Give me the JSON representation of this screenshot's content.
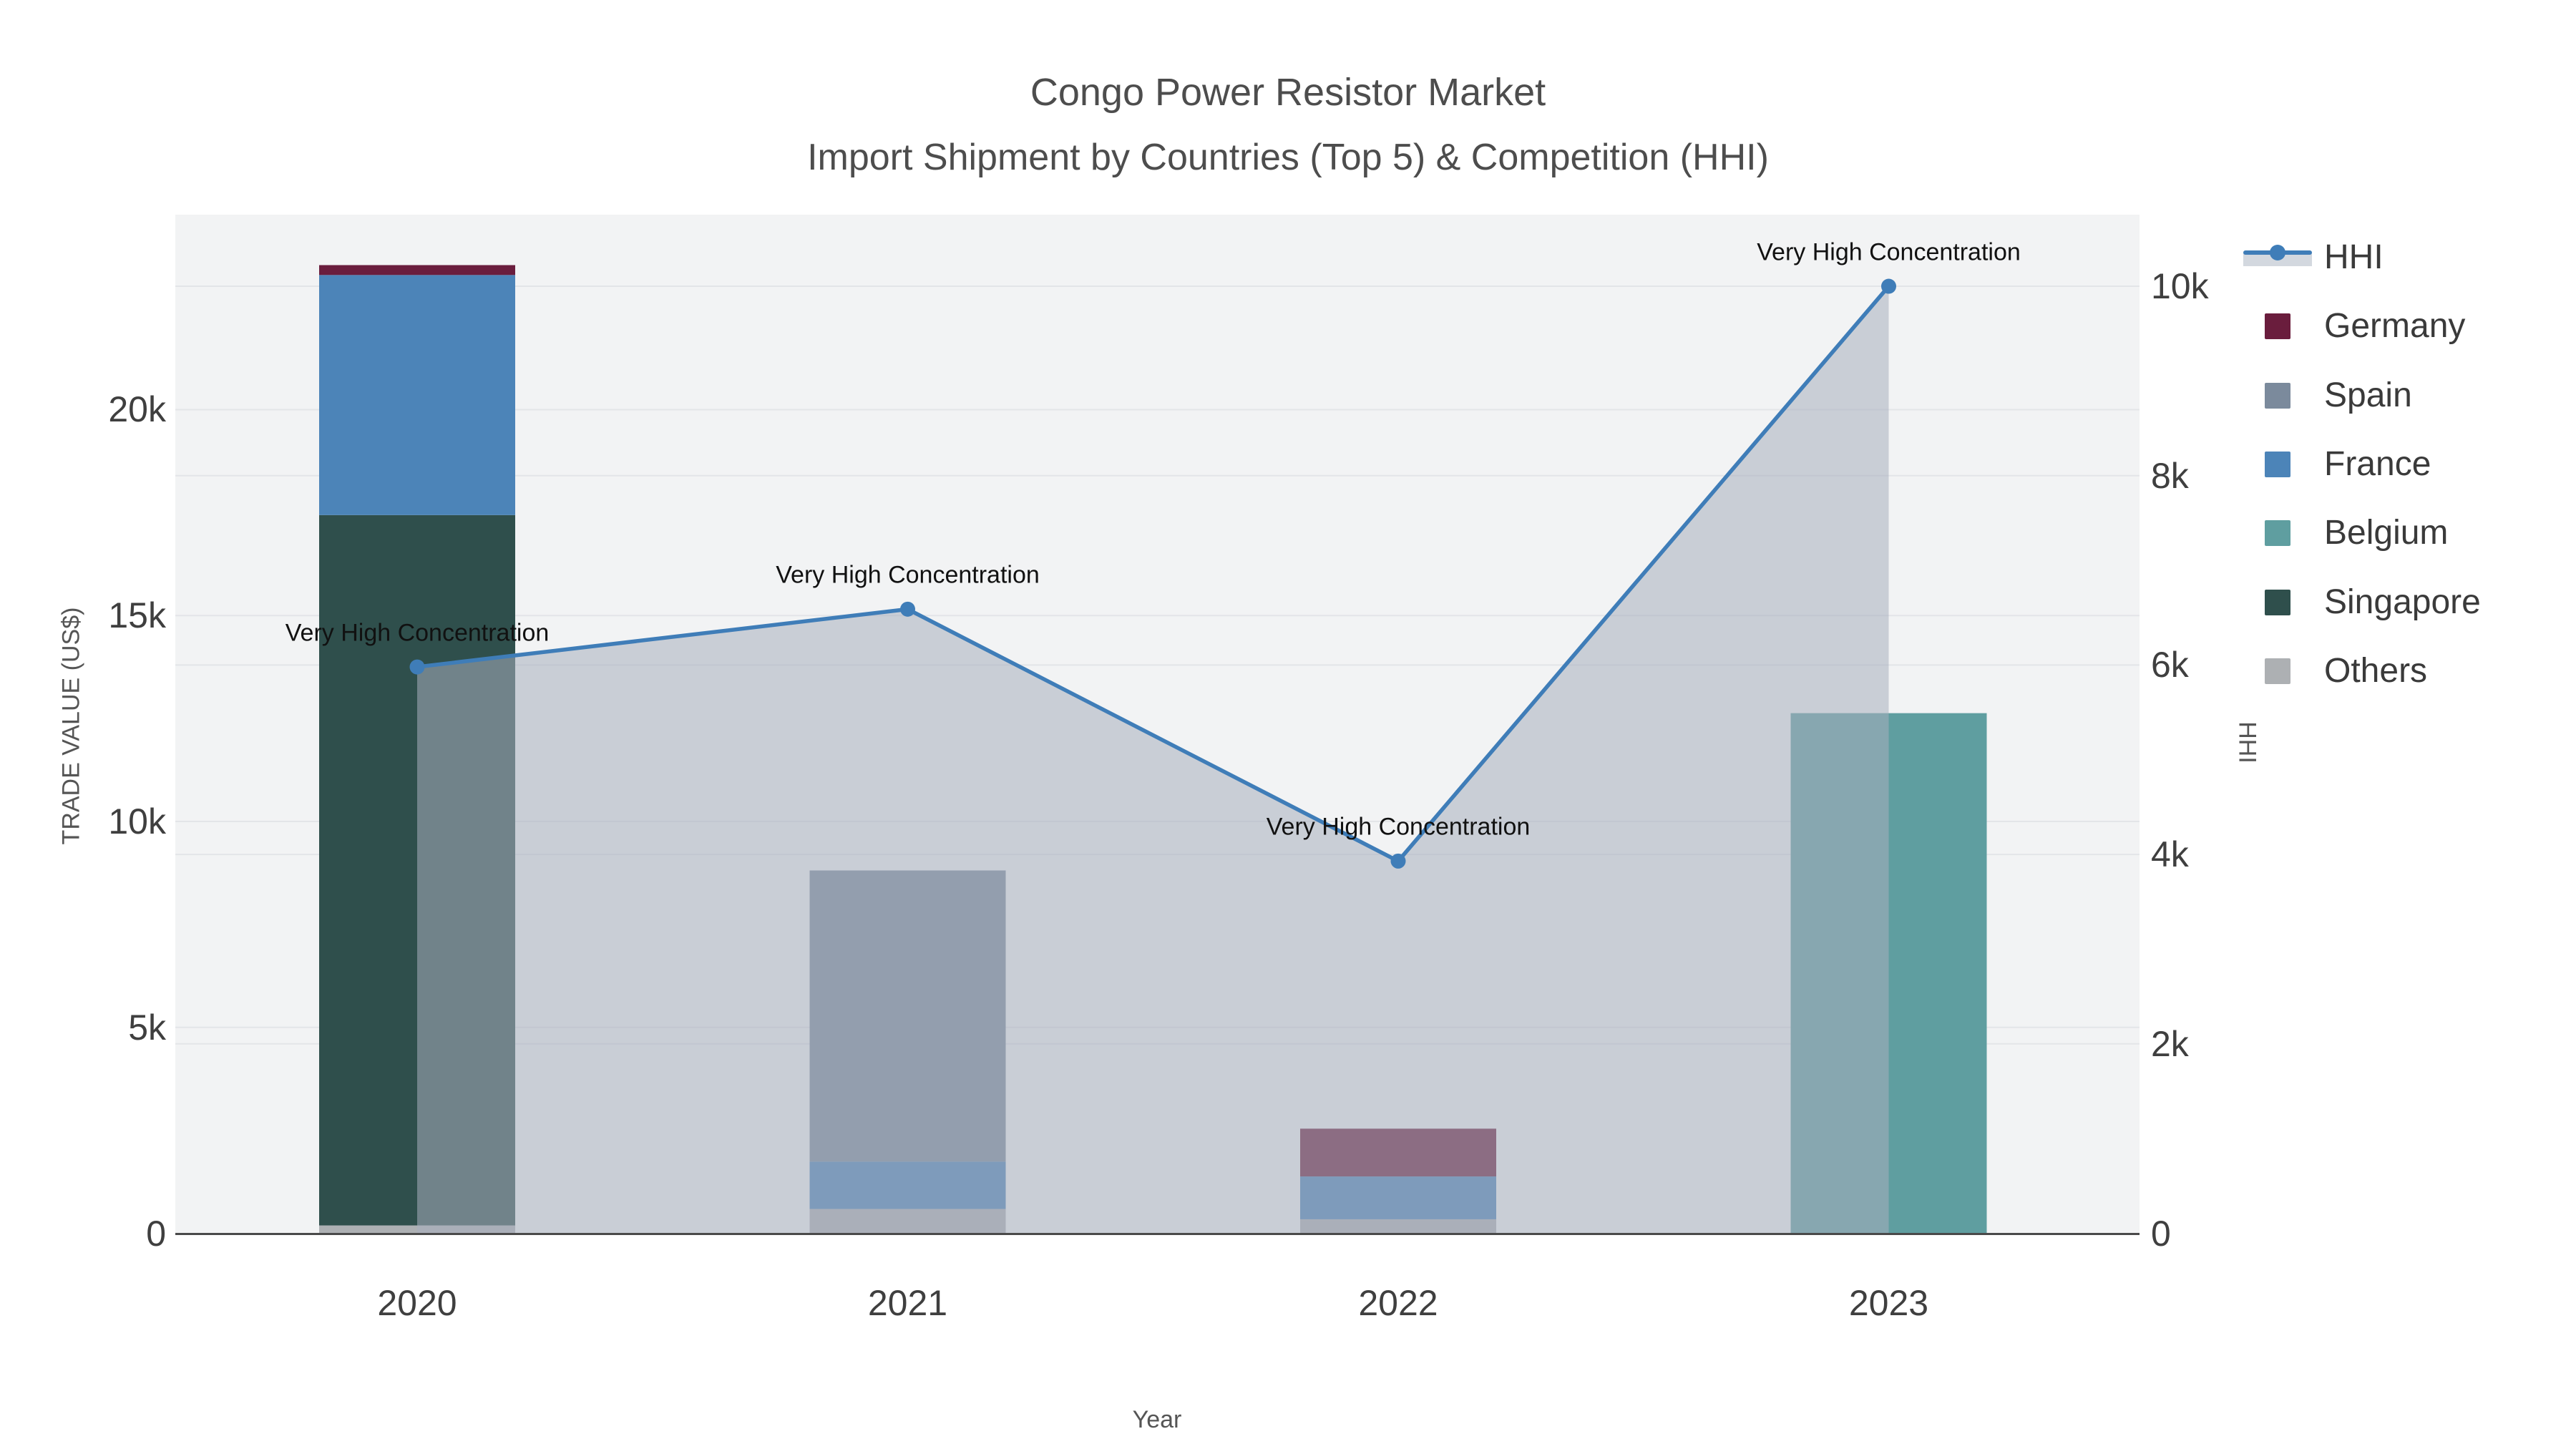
{
  "title": "Congo Power Resistor Market",
  "subtitle": "Import Shipment by Countries (Top 5) & Competition (HHI)",
  "colors": {
    "background": "#ffffff",
    "plot_bg": "#f2f3f4",
    "gridline": "#e3e5e8",
    "axis_line": "#4a4a4a",
    "hhi_line": "#3f7db8",
    "hhi_area": "rgba(167,175,189,0.55)",
    "germany": "#6a1d3d",
    "spain": "#7b8a9c",
    "france": "#4c84b8",
    "belgium": "#5f9ea0",
    "singapore": "#2f4f4c",
    "others": "#adb0b3"
  },
  "chart_data": {
    "type": "bar+line",
    "title": "Congo Power Resistor Market",
    "subtitle": "Import Shipment by Countries (Top 5) & Competition (HHI)",
    "categories": [
      "2020",
      "2021",
      "2022",
      "2023"
    ],
    "bar_mode": "stacked",
    "stack_order_bottom_to_top": [
      "Others",
      "Singapore",
      "Belgium",
      "France",
      "Spain",
      "Germany"
    ],
    "series": [
      {
        "name": "Germany",
        "color": "#6a1d3d",
        "values": [
          240,
          0,
          1160,
          0
        ]
      },
      {
        "name": "Spain",
        "color": "#7b8a9c",
        "values": [
          0,
          7070,
          0,
          0
        ]
      },
      {
        "name": "France",
        "color": "#4c84b8",
        "values": [
          5830,
          1150,
          1040,
          0
        ]
      },
      {
        "name": "Belgium",
        "color": "#5f9ea0",
        "values": [
          0,
          0,
          0,
          12630
        ]
      },
      {
        "name": "Singapore",
        "color": "#2f4f4c",
        "values": [
          17250,
          0,
          0,
          0
        ]
      },
      {
        "name": "Others",
        "color": "#adb0b3",
        "values": [
          190,
          590,
          340,
          0
        ]
      }
    ],
    "line_series": {
      "name": "HHI",
      "color": "#3f7db8",
      "fill": "tozeroy",
      "fill_color": "rgba(167,175,189,0.55)",
      "axis": "right",
      "values": [
        5980,
        6590,
        3930,
        10000
      ]
    },
    "annotations": [
      {
        "text": "Very High Concentration",
        "x_index": 0
      },
      {
        "text": "Very High Concentration",
        "x_index": 1
      },
      {
        "text": "Very High Concentration",
        "x_index": 2
      },
      {
        "text": "Very High Concentration",
        "x_index": 3
      }
    ],
    "xlabel": "Year",
    "y_left": {
      "title": "TRADE VALUE (US$)",
      "tick_labels": [
        "0",
        "5k",
        "10k",
        "15k",
        "20k"
      ],
      "tick_values": [
        0,
        5000,
        10000,
        15000,
        20000
      ],
      "range": [
        0,
        24735
      ]
    },
    "y_right": {
      "title": "HHI",
      "tick_labels": [
        "0",
        "2k",
        "4k",
        "6k",
        "8k",
        "10k"
      ],
      "tick_values": [
        0,
        2000,
        4000,
        6000,
        8000,
        10000
      ],
      "range": [
        0,
        10756
      ]
    },
    "grid": true,
    "legend_position": "top-right"
  },
  "legend": {
    "items": [
      {
        "label": "HHI",
        "type": "line",
        "color": "#3f7db8"
      },
      {
        "label": "Germany",
        "type": "swatch",
        "color": "#6a1d3d"
      },
      {
        "label": "Spain",
        "type": "swatch",
        "color": "#7b8a9c"
      },
      {
        "label": "France",
        "type": "swatch",
        "color": "#4c84b8"
      },
      {
        "label": "Belgium",
        "type": "swatch",
        "color": "#5f9ea0"
      },
      {
        "label": "Singapore",
        "type": "swatch",
        "color": "#2f4f4c"
      },
      {
        "label": "Others",
        "type": "swatch",
        "color": "#adb0b3"
      }
    ]
  }
}
